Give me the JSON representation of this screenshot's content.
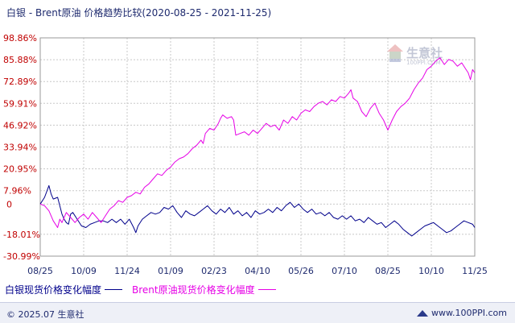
{
  "title": "白银 - Brent原油 价格趋势比较(2020-08-25 - 2021-11-25)",
  "chart_data": {
    "type": "line",
    "y_unit": "%",
    "yticks": [
      "98.86%",
      "85.88%",
      "72.89%",
      "59.91%",
      "46.92%",
      "33.94%",
      "20.95%",
      "7.96%",
      "0",
      "-18.01%",
      "-30.99%"
    ],
    "yvalues": [
      98.86,
      85.88,
      72.89,
      59.91,
      46.92,
      33.94,
      20.95,
      7.96,
      0,
      -18.01,
      -30.99
    ],
    "ylim": [
      -30.99,
      98.86
    ],
    "xticks": [
      "08/25",
      "10/09",
      "11/24",
      "01/09",
      "02/23",
      "04/10",
      "05/26",
      "07/10",
      "08/25",
      "10/10",
      "11/25"
    ],
    "grid": true,
    "legend_position": "bottom-left",
    "series": [
      {
        "name": "白银现货价格变化幅度",
        "color": "#00008b",
        "values": [
          [
            0,
            0
          ],
          [
            2,
            4
          ],
          [
            4,
            11
          ],
          [
            5,
            6
          ],
          [
            6,
            3
          ],
          [
            8,
            4
          ],
          [
            9,
            -1
          ],
          [
            10,
            -6
          ],
          [
            11,
            -9
          ],
          [
            12,
            -11
          ],
          [
            13,
            -12
          ],
          [
            14,
            -6
          ],
          [
            15,
            -5
          ],
          [
            17,
            -9
          ],
          [
            19,
            -13
          ],
          [
            21,
            -14
          ],
          [
            23,
            -12
          ],
          [
            25,
            -11
          ],
          [
            27,
            -10
          ],
          [
            29,
            -10
          ],
          [
            31,
            -11
          ],
          [
            33,
            -9
          ],
          [
            35,
            -11
          ],
          [
            37,
            -9
          ],
          [
            39,
            -12
          ],
          [
            41,
            -9
          ],
          [
            43,
            -14
          ],
          [
            44,
            -17
          ],
          [
            45,
            -13
          ],
          [
            47,
            -9
          ],
          [
            49,
            -7
          ],
          [
            51,
            -5
          ],
          [
            53,
            -6
          ],
          [
            55,
            -5
          ],
          [
            57,
            -2
          ],
          [
            59,
            -3
          ],
          [
            61,
            -1
          ],
          [
            63,
            -5
          ],
          [
            65,
            -8
          ],
          [
            67,
            -4
          ],
          [
            69,
            -6
          ],
          [
            71,
            -7
          ],
          [
            73,
            -5
          ],
          [
            75,
            -3
          ],
          [
            77,
            -1
          ],
          [
            79,
            -4
          ],
          [
            81,
            -6
          ],
          [
            83,
            -3
          ],
          [
            85,
            -5
          ],
          [
            87,
            -2
          ],
          [
            89,
            -6
          ],
          [
            91,
            -4
          ],
          [
            93,
            -7
          ],
          [
            95,
            -5
          ],
          [
            97,
            -8
          ],
          [
            99,
            -4
          ],
          [
            101,
            -6
          ],
          [
            103,
            -5
          ],
          [
            105,
            -3
          ],
          [
            107,
            -5
          ],
          [
            109,
            -2
          ],
          [
            111,
            -4
          ],
          [
            113,
            -1
          ],
          [
            115,
            1
          ],
          [
            117,
            -2
          ],
          [
            119,
            0
          ],
          [
            121,
            -3
          ],
          [
            123,
            -5
          ],
          [
            125,
            -3
          ],
          [
            127,
            -6
          ],
          [
            129,
            -5
          ],
          [
            131,
            -7
          ],
          [
            133,
            -5
          ],
          [
            135,
            -8
          ],
          [
            137,
            -9
          ],
          [
            139,
            -7
          ],
          [
            141,
            -9
          ],
          [
            143,
            -7
          ],
          [
            145,
            -10
          ],
          [
            147,
            -9
          ],
          [
            149,
            -11
          ],
          [
            151,
            -8
          ],
          [
            153,
            -10
          ],
          [
            155,
            -12
          ],
          [
            157,
            -11
          ],
          [
            159,
            -14
          ],
          [
            161,
            -12
          ],
          [
            163,
            -10
          ],
          [
            165,
            -12
          ],
          [
            167,
            -15
          ],
          [
            169,
            -17
          ],
          [
            171,
            -19
          ],
          [
            173,
            -17
          ],
          [
            175,
            -15
          ],
          [
            177,
            -13
          ],
          [
            179,
            -12
          ],
          [
            181,
            -11
          ],
          [
            183,
            -13
          ],
          [
            185,
            -15
          ],
          [
            187,
            -17
          ],
          [
            189,
            -16
          ],
          [
            191,
            -14
          ],
          [
            193,
            -12
          ],
          [
            195,
            -10
          ],
          [
            197,
            -11
          ],
          [
            199,
            -12
          ],
          [
            200,
            -14
          ]
        ]
      },
      {
        "name": "Brent原油现货价格变化幅度",
        "color": "#e600e6",
        "values": [
          [
            0,
            0
          ],
          [
            2,
            -1
          ],
          [
            4,
            -4
          ],
          [
            6,
            -10
          ],
          [
            8,
            -14
          ],
          [
            9,
            -9
          ],
          [
            10,
            -11
          ],
          [
            12,
            -5
          ],
          [
            14,
            -8
          ],
          [
            16,
            -11
          ],
          [
            18,
            -8
          ],
          [
            20,
            -6
          ],
          [
            22,
            -9
          ],
          [
            24,
            -5
          ],
          [
            26,
            -8
          ],
          [
            28,
            -11
          ],
          [
            30,
            -7
          ],
          [
            32,
            -3
          ],
          [
            34,
            -1
          ],
          [
            36,
            2
          ],
          [
            38,
            1
          ],
          [
            40,
            4
          ],
          [
            42,
            5
          ],
          [
            44,
            7
          ],
          [
            46,
            6
          ],
          [
            48,
            10
          ],
          [
            50,
            12
          ],
          [
            52,
            15
          ],
          [
            54,
            18
          ],
          [
            56,
            17
          ],
          [
            58,
            20
          ],
          [
            60,
            22
          ],
          [
            62,
            25
          ],
          [
            64,
            27
          ],
          [
            66,
            28
          ],
          [
            68,
            30
          ],
          [
            70,
            33
          ],
          [
            72,
            35
          ],
          [
            74,
            38
          ],
          [
            75,
            36
          ],
          [
            76,
            42
          ],
          [
            78,
            45
          ],
          [
            80,
            44
          ],
          [
            82,
            48
          ],
          [
            83,
            51
          ],
          [
            84,
            53
          ],
          [
            86,
            51
          ],
          [
            88,
            52
          ],
          [
            89,
            50
          ],
          [
            90,
            41
          ],
          [
            92,
            42
          ],
          [
            94,
            43
          ],
          [
            96,
            41
          ],
          [
            98,
            44
          ],
          [
            100,
            42
          ],
          [
            102,
            45
          ],
          [
            104,
            48
          ],
          [
            106,
            46
          ],
          [
            108,
            47
          ],
          [
            110,
            44
          ],
          [
            112,
            50
          ],
          [
            114,
            48
          ],
          [
            116,
            52
          ],
          [
            118,
            50
          ],
          [
            120,
            54
          ],
          [
            122,
            56
          ],
          [
            124,
            55
          ],
          [
            126,
            58
          ],
          [
            128,
            60
          ],
          [
            130,
            61
          ],
          [
            132,
            59
          ],
          [
            134,
            62
          ],
          [
            136,
            61
          ],
          [
            138,
            64
          ],
          [
            140,
            63
          ],
          [
            142,
            66
          ],
          [
            143,
            68
          ],
          [
            144,
            63
          ],
          [
            146,
            61
          ],
          [
            148,
            55
          ],
          [
            150,
            52
          ],
          [
            152,
            57
          ],
          [
            154,
            60
          ],
          [
            156,
            54
          ],
          [
            158,
            50
          ],
          [
            160,
            44
          ],
          [
            162,
            50
          ],
          [
            164,
            55
          ],
          [
            166,
            58
          ],
          [
            168,
            60
          ],
          [
            170,
            63
          ],
          [
            172,
            68
          ],
          [
            174,
            72
          ],
          [
            176,
            75
          ],
          [
            178,
            80
          ],
          [
            180,
            82
          ],
          [
            182,
            85
          ],
          [
            184,
            87
          ],
          [
            186,
            83
          ],
          [
            188,
            86
          ],
          [
            190,
            85
          ],
          [
            192,
            82
          ],
          [
            194,
            84
          ],
          [
            196,
            80
          ],
          [
            197,
            78
          ],
          [
            198,
            74
          ],
          [
            199,
            80
          ],
          [
            200,
            78
          ]
        ]
      }
    ]
  },
  "watermark": {
    "brand": "生意社",
    "sub": "100PPI.COM"
  },
  "footer": {
    "left": "© 2025.07 生意社",
    "right": "www.100PPI.com"
  }
}
